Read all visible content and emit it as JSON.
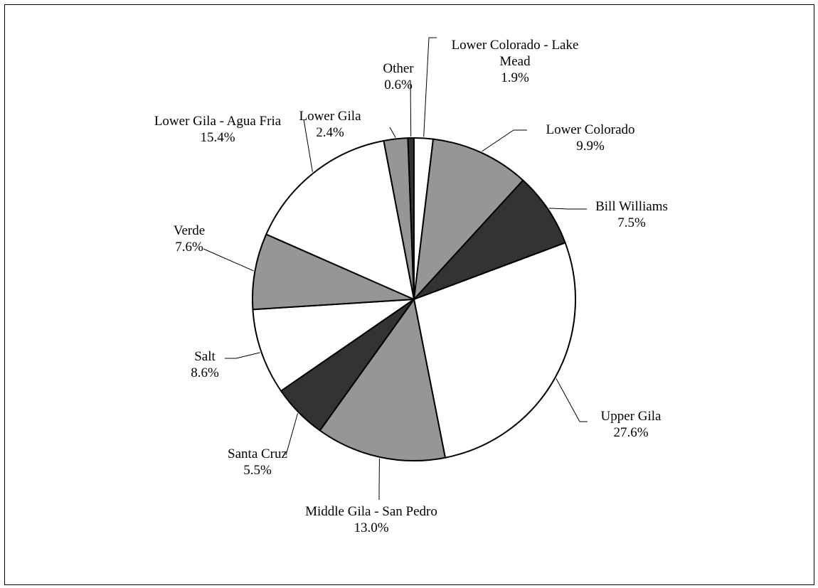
{
  "chart_data": {
    "type": "pie",
    "title": "",
    "start": "clockwise from 12 o'clock",
    "slices": [
      {
        "name": "Lower Colorado - Lake Mead",
        "name_lines": [
          "Lower Colorado - Lake",
          "Mead"
        ],
        "value": 1.9,
        "label": "1.9%",
        "color": "#ffffff"
      },
      {
        "name": "Lower Colorado",
        "name_lines": [
          "Lower Colorado"
        ],
        "value": 9.9,
        "label": "9.9%",
        "color": "#969696"
      },
      {
        "name": "Bill Williams",
        "name_lines": [
          "Bill Williams"
        ],
        "value": 7.5,
        "label": "7.5%",
        "color": "#333333"
      },
      {
        "name": "Upper Gila",
        "name_lines": [
          "Upper Gila"
        ],
        "value": 27.6,
        "label": "27.6%",
        "color": "#ffffff"
      },
      {
        "name": "Middle Gila - San Pedro",
        "name_lines": [
          "Middle Gila - San Pedro"
        ],
        "value": 13.0,
        "label": "13.0%",
        "color": "#969696"
      },
      {
        "name": "Santa Cruz",
        "name_lines": [
          "Santa Cruz"
        ],
        "value": 5.5,
        "label": "5.5%",
        "color": "#333333"
      },
      {
        "name": "Salt",
        "name_lines": [
          "Salt"
        ],
        "value": 8.6,
        "label": "8.6%",
        "color": "#ffffff"
      },
      {
        "name": "Verde",
        "name_lines": [
          "Verde"
        ],
        "value": 7.6,
        "label": "7.6%",
        "color": "#969696"
      },
      {
        "name": "Lower Gila - Agua Fria",
        "name_lines": [
          "Lower Gila - Agua Fria"
        ],
        "value": 15.4,
        "label": "15.4%",
        "color": "#ffffff"
      },
      {
        "name": "Lower Gila",
        "name_lines": [
          "Lower Gila"
        ],
        "value": 2.4,
        "label": "2.4%",
        "color": "#969696"
      },
      {
        "name": "Other",
        "name_lines": [
          "Other"
        ],
        "value": 0.6,
        "label": "0.6%",
        "color": "#333333"
      }
    ]
  }
}
